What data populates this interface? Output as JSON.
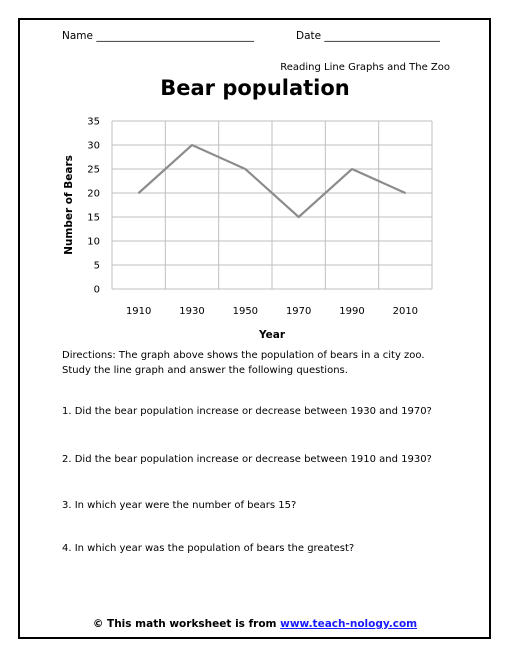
{
  "header": {
    "name_label": "Name ______________________________",
    "date_label": "Date ______________________"
  },
  "subtitle": "Reading Line Graphs and The Zoo",
  "chart_data": {
    "type": "line",
    "title": "Bear population",
    "xlabel": "Year",
    "ylabel": "Number of Bears",
    "categories": [
      "1910",
      "1930",
      "1950",
      "1970",
      "1990",
      "2010"
    ],
    "series": [
      {
        "values": [
          20,
          30,
          25,
          15,
          25,
          20
        ],
        "color": "#8c8c8c"
      }
    ],
    "ylim": [
      0,
      35
    ],
    "yticks": [
      "0",
      "5",
      "10",
      "15",
      "20",
      "25",
      "30",
      "35"
    ],
    "grid": true,
    "legend": "none"
  },
  "directions": [
    "Directions: The graph above shows the population of bears in a city zoo.",
    "Study the line graph and answer the following questions."
  ],
  "questions": [
    "1. Did the bear population increase or decrease between 1930 and 1970?",
    "2. Did the bear population increase or decrease between 1910 and 1930?",
    "3. In which year were the number of bears 15?",
    "4. In which year was the population of bears the greatest?"
  ],
  "footer": {
    "prefix": "© This math worksheet is from ",
    "link_text": "www.teach-nology.com",
    "link_color": "#1a1aff"
  }
}
